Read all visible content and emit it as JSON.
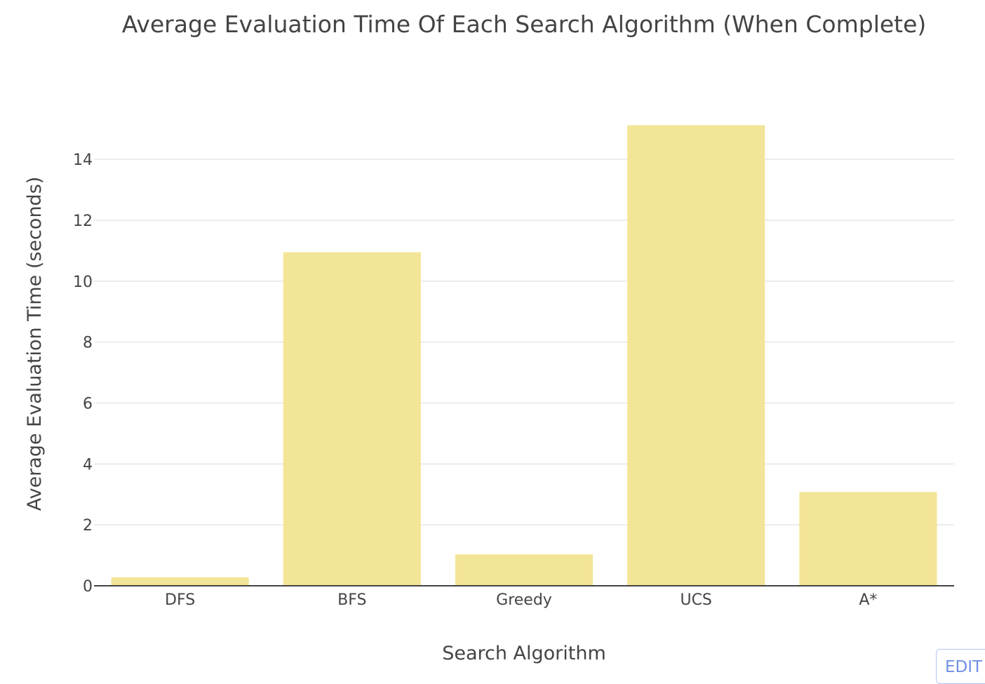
{
  "chart_data": {
    "type": "bar",
    "title": "Average Evaluation Time Of Each Search Algorithm (When Complete)",
    "xlabel": "Search Algorithm",
    "ylabel": "Average Evaluation Time (seconds)",
    "categories": [
      "DFS",
      "BFS",
      "Greedy",
      "UCS",
      "A*"
    ],
    "values": [
      0.28,
      10.95,
      1.03,
      15.12,
      3.08
    ],
    "ylim": [
      0,
      15.2
    ],
    "yticks": [
      0,
      2,
      4,
      6,
      8,
      10,
      12,
      14
    ],
    "grid": true,
    "bar_color": "#f3e597"
  },
  "edit_button": {
    "label": "EDIT"
  }
}
